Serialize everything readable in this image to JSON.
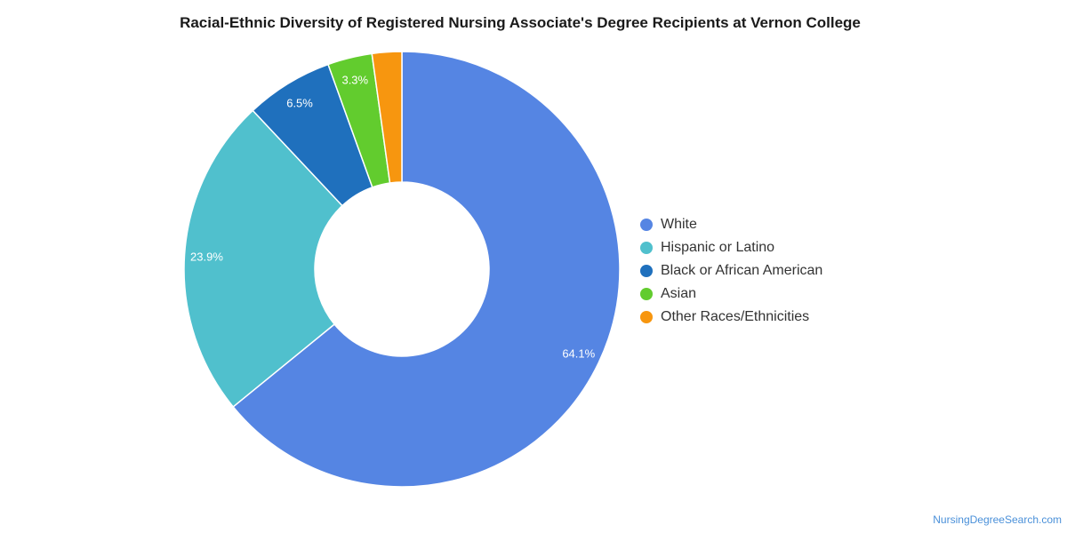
{
  "chart_data": {
    "type": "pie",
    "title": "Racial-Ethnic Diversity of Registered Nursing Associate's Degree Recipients at Vernon College",
    "categories": [
      "White",
      "Hispanic or Latino",
      "Black or African American",
      "Asian",
      "Other Races/Ethnicities"
    ],
    "values": [
      64.1,
      23.9,
      6.5,
      3.3,
      2.2
    ],
    "labels": [
      "64.1%",
      "23.9%",
      "6.5%",
      "3.3%",
      ""
    ],
    "colors": [
      "#5585e3",
      "#50c0cd",
      "#1f70bd",
      "#62cc2e",
      "#f7960f"
    ],
    "legend_position": "right"
  },
  "watermark": "NursingDegreeSearch.com"
}
